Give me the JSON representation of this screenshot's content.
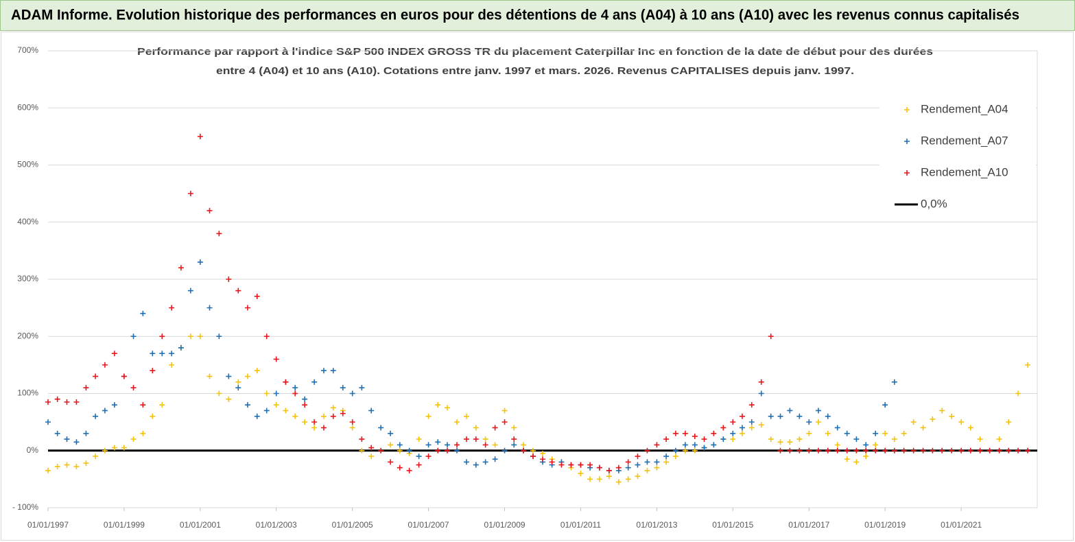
{
  "header": {
    "title": "ADAM Informe. Evolution historique des performances en euros pour des détentions de 4 ans (A04) à 10 ans (A10) avec les revenus connus capitalisés"
  },
  "chart_data": {
    "type": "scatter",
    "title": [
      "Performance par rapport à l'indice S&P 500 INDEX GROSS TR  du placement Caterpillar Inc en fonction de la date de début pour des durées",
      "entre 4 (A04) et 10 ans (A10). Cotations entre janv. 1997 et mars. 2026. Revenus CAPITALISES depuis janv. 1997."
    ],
    "x": [
      "01/01/1997",
      "01/04/1997",
      "01/07/1997",
      "01/10/1997",
      "01/01/1998",
      "01/04/1998",
      "01/07/1998",
      "01/10/1998",
      "01/01/1999",
      "01/04/1999",
      "01/07/1999",
      "01/10/1999",
      "01/01/2000",
      "01/04/2000",
      "01/07/2000",
      "01/10/2000",
      "01/01/2001",
      "01/04/2001",
      "01/07/2001",
      "01/10/2001",
      "01/01/2002",
      "01/04/2002",
      "01/07/2002",
      "01/10/2002",
      "01/01/2003",
      "01/04/2003",
      "01/07/2003",
      "01/10/2003",
      "01/01/2004",
      "01/04/2004",
      "01/07/2004",
      "01/10/2004",
      "01/01/2005",
      "01/04/2005",
      "01/07/2005",
      "01/10/2005",
      "01/01/2006",
      "01/04/2006",
      "01/07/2006",
      "01/10/2006",
      "01/01/2007",
      "01/04/2007",
      "01/07/2007",
      "01/10/2007",
      "01/01/2008",
      "01/04/2008",
      "01/07/2008",
      "01/10/2008",
      "01/01/2009",
      "01/04/2009",
      "01/07/2009",
      "01/10/2009",
      "01/01/2010",
      "01/04/2010",
      "01/07/2010",
      "01/10/2010",
      "01/01/2011",
      "01/04/2011",
      "01/07/2011",
      "01/10/2011",
      "01/01/2012",
      "01/04/2012",
      "01/07/2012",
      "01/10/2012",
      "01/01/2013",
      "01/04/2013",
      "01/07/2013",
      "01/10/2013",
      "01/01/2014",
      "01/04/2014",
      "01/07/2014",
      "01/10/2014",
      "01/01/2015",
      "01/04/2015",
      "01/07/2015",
      "01/10/2015",
      "01/01/2016",
      "01/04/2016",
      "01/07/2016",
      "01/10/2016",
      "01/01/2017",
      "01/04/2017",
      "01/07/2017",
      "01/10/2017",
      "01/01/2018",
      "01/04/2018",
      "01/07/2018",
      "01/10/2018",
      "01/01/2019",
      "01/04/2019",
      "01/07/2019",
      "01/10/2019",
      "01/01/2020",
      "01/04/2020",
      "01/07/2020",
      "01/10/2020",
      "01/01/2021",
      "01/04/2021",
      "01/07/2021",
      "01/10/2021",
      "01/01/2022",
      "01/04/2022",
      "01/07/2022",
      "01/10/2022"
    ],
    "series": [
      {
        "name": "Rendement_A04",
        "color": "#f4c20d",
        "values": [
          -35,
          -28,
          -25,
          -28,
          -22,
          -10,
          0,
          5,
          5,
          20,
          30,
          60,
          80,
          150,
          180,
          200,
          200,
          130,
          100,
          90,
          120,
          130,
          140,
          100,
          80,
          70,
          60,
          50,
          40,
          60,
          75,
          70,
          40,
          0,
          -10,
          0,
          10,
          0,
          -5,
          20,
          60,
          80,
          75,
          50,
          60,
          40,
          20,
          10,
          70,
          40,
          10,
          0,
          -5,
          -15,
          -20,
          -30,
          -40,
          -50,
          -50,
          -45,
          -55,
          -50,
          -45,
          -35,
          -30,
          -20,
          -10,
          0,
          0,
          5,
          10,
          20,
          20,
          30,
          40,
          45,
          20,
          15,
          15,
          20,
          30,
          50,
          30,
          10,
          -15,
          -20,
          -10,
          10,
          30,
          20,
          30,
          50,
          40,
          55,
          70,
          60,
          50,
          40,
          20,
          0,
          20,
          50,
          100,
          150
        ]
      },
      {
        "name": "Rendement_A07",
        "color": "#1f6fb5",
        "values": [
          50,
          30,
          20,
          15,
          30,
          60,
          70,
          80,
          130,
          200,
          240,
          170,
          170,
          170,
          180,
          280,
          330,
          250,
          200,
          130,
          110,
          80,
          60,
          70,
          100,
          120,
          110,
          90,
          120,
          140,
          140,
          110,
          100,
          110,
          70,
          40,
          30,
          10,
          0,
          -10,
          10,
          15,
          10,
          0,
          -20,
          -25,
          -20,
          -15,
          0,
          10,
          0,
          -10,
          -20,
          -25,
          -20,
          -25,
          -25,
          -30,
          -30,
          -35,
          -35,
          -30,
          -25,
          -20,
          -20,
          -10,
          0,
          10,
          10,
          5,
          10,
          20,
          30,
          40,
          50,
          100,
          60,
          60,
          70,
          60,
          50,
          70,
          60,
          40,
          30,
          20,
          10,
          30,
          80,
          120,
          null,
          null,
          null,
          null,
          null,
          null,
          null,
          null,
          null,
          null,
          null,
          null,
          null,
          null
        ]
      },
      {
        "name": "Rendement_A10",
        "color": "#e8161b",
        "values": [
          85,
          90,
          85,
          85,
          110,
          130,
          150,
          170,
          130,
          110,
          80,
          140,
          200,
          250,
          320,
          450,
          550,
          420,
          380,
          300,
          280,
          250,
          270,
          200,
          160,
          120,
          100,
          80,
          50,
          40,
          60,
          65,
          50,
          20,
          5,
          0,
          -20,
          -30,
          -35,
          -25,
          -10,
          0,
          0,
          10,
          20,
          20,
          10,
          40,
          50,
          20,
          0,
          -10,
          -15,
          -20,
          -25,
          -25,
          -25,
          -25,
          -30,
          -35,
          -30,
          -20,
          -10,
          0,
          10,
          20,
          30,
          30,
          25,
          20,
          30,
          40,
          50,
          60,
          80,
          120,
          200,
          0,
          0,
          0,
          0,
          0,
          0,
          0,
          0,
          0,
          0,
          0,
          0,
          0,
          0,
          0,
          0,
          0,
          0,
          0,
          0,
          0,
          0,
          0,
          0,
          0,
          0,
          0
        ]
      }
    ],
    "reference_line": {
      "name": "0,0%",
      "color": "#000000",
      "value": 0
    },
    "xlim": [
      "01/01/1997",
      "01/01/2023"
    ],
    "xticks": [
      "01/01/1997",
      "01/01/1999",
      "01/01/2001",
      "01/01/2003",
      "01/01/2005",
      "01/01/2007",
      "01/01/2009",
      "01/01/2011",
      "01/01/2013",
      "01/01/2015",
      "01/01/2017",
      "01/01/2019",
      "01/01/2021"
    ],
    "ylim": [
      -100,
      700
    ],
    "yticks": [
      {
        "value": -100,
        "label": "- 100%"
      },
      {
        "value": 0,
        "label": "0%"
      },
      {
        "value": 100,
        "label": "100%"
      },
      {
        "value": 200,
        "label": "200%"
      },
      {
        "value": 300,
        "label": "300%"
      },
      {
        "value": 400,
        "label": "400%"
      },
      {
        "value": 500,
        "label": "500%"
      },
      {
        "value": 600,
        "label": "600%"
      },
      {
        "value": 700,
        "label": "700%"
      }
    ],
    "grid": true,
    "legend": "upper right"
  }
}
